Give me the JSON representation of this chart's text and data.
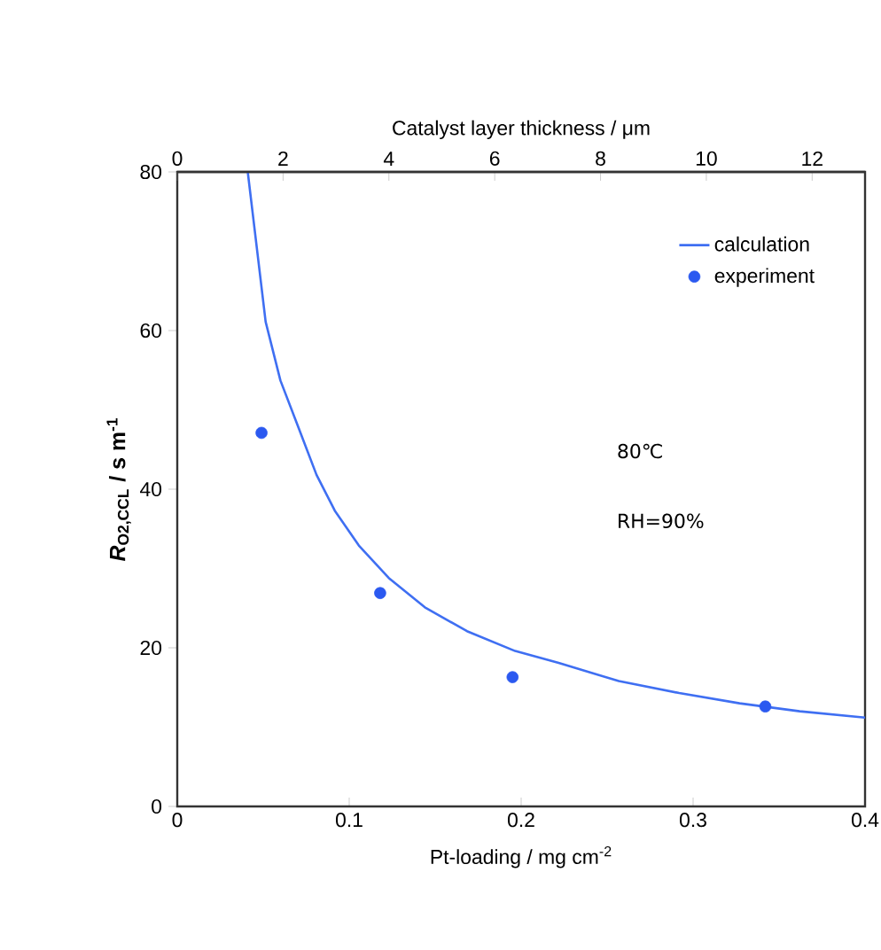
{
  "chart_data": {
    "type": "line",
    "xlabel": "Pt-loading / mg cm$^{-2}$",
    "x2label": "Catalyst layer thickness / μm",
    "ylabel": "*R*$_{O2,CCL}$ / s m$^{-1}$",
    "xlim": [
      0,
      0.4
    ],
    "xticks": [
      0,
      0.1,
      0.2,
      0.3,
      0.4
    ],
    "x2lim": [
      0,
      13
    ],
    "x2ticks": [
      0,
      2,
      4,
      6,
      8,
      10,
      12
    ],
    "ylim": [
      0,
      80
    ],
    "yticks": [
      0,
      20,
      40,
      60,
      80
    ],
    "legend": "top right",
    "grid": false,
    "annotations": [
      "80℃",
      "RH=90%"
    ],
    "series": [
      {
        "name": "calculation",
        "color": "#3f6ff2",
        "line_style": "solid",
        "marker": "none",
        "x": [
          0.041,
          0.0514,
          0.06,
          0.0706,
          0.081,
          0.0916,
          0.1056,
          0.123,
          0.144,
          0.1685,
          0.1965,
          0.2218,
          0.2568,
          0.2919,
          0.327,
          0.362,
          0.4
        ],
        "values": [
          80,
          61.1,
          53.7,
          47.7,
          41.8,
          37.3,
          32.9,
          28.8,
          25.1,
          22.1,
          19.6,
          18.1,
          15.8,
          14.3,
          13.0,
          12.0,
          11.2
        ]
      },
      {
        "name": "experiment",
        "type": "scatter",
        "color": "#2b59f0",
        "marker": "circle",
        "x": [
          0.049,
          0.118,
          0.195,
          0.342
        ],
        "values": [
          47.1,
          26.9,
          16.3,
          12.6
        ]
      }
    ]
  }
}
